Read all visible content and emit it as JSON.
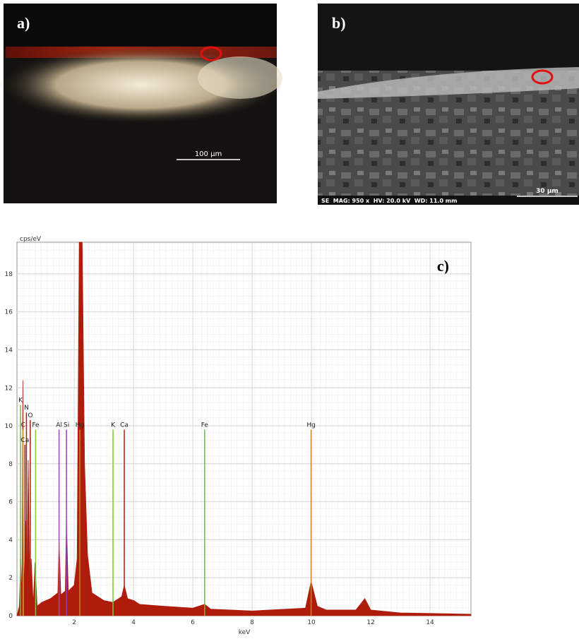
{
  "panels": {
    "a": {
      "label": "a)",
      "scale_bar": "100 µm"
    },
    "b": {
      "label": "b)",
      "scale_bar": "30 µm",
      "info": "SE  MAG: 950 x  HV: 20.0 kV  WD: 11.0 mm"
    }
  },
  "chart_data": {
    "type": "spectrum",
    "panel_label": "c)",
    "ylabel": "cps/eV",
    "xlabel": "keV",
    "xlim": [
      0.07,
      15.38
    ],
    "ylim": [
      0,
      19.67
    ],
    "xticks": [
      2,
      4,
      6,
      8,
      10,
      12,
      14
    ],
    "yticks": [
      0,
      2,
      4,
      6,
      8,
      10,
      12,
      14,
      16,
      18
    ],
    "grid": true,
    "spectrum": {
      "color": "#b01c0c",
      "x": [
        0.07,
        0.15,
        0.2,
        0.24,
        0.27,
        0.3,
        0.36,
        0.4,
        0.45,
        0.5,
        0.55,
        0.62,
        0.68,
        0.75,
        0.9,
        1.2,
        1.45,
        1.49,
        1.55,
        1.7,
        1.74,
        1.8,
        2.0,
        2.1,
        2.17,
        2.27,
        2.35,
        2.45,
        2.6,
        3.0,
        3.3,
        3.6,
        3.69,
        3.8,
        4.01,
        4.2,
        5.0,
        6.0,
        6.4,
        6.6,
        8,
        8.6,
        9.8,
        9.99,
        10.2,
        10.5,
        11.5,
        11.8,
        12.0,
        13,
        14,
        15.38
      ],
      "values": [
        0,
        0.5,
        3,
        0.8,
        12.4,
        1,
        5,
        0.8,
        8.2,
        1.5,
        3,
        0.6,
        2.8,
        0.5,
        0.7,
        0.9,
        1.2,
        4.0,
        1.1,
        1.3,
        5.1,
        1.3,
        1.6,
        3,
        19.67,
        19.67,
        8,
        3.2,
        1.2,
        0.8,
        0.7,
        1.0,
        1.6,
        0.9,
        0.8,
        0.6,
        0.5,
        0.4,
        0.6,
        0.35,
        0.25,
        0.3,
        0.4,
        1.8,
        0.5,
        0.3,
        0.3,
        0.9,
        0.3,
        0.15,
        0.12,
        0.08
      ]
    },
    "markers": [
      {
        "label": "K",
        "energy": 0.19,
        "height": 11.1,
        "color": "#7ab83c"
      },
      {
        "label": "N",
        "energy": 0.39,
        "height": 10.7,
        "color": "#b01c0c"
      },
      {
        "label": "O",
        "energy": 0.52,
        "height": 10.3,
        "color": "#b01c0c"
      },
      {
        "label": "C",
        "energy": 0.28,
        "height": 9.8,
        "color": "#d8a040"
      },
      {
        "label": "Fe",
        "energy": 0.7,
        "height": 9.8,
        "color": "#7ac83c"
      },
      {
        "label": "Ca",
        "energy": 0.34,
        "height": 9.0,
        "color": "#b01c0c"
      },
      {
        "label": "Al",
        "energy": 1.49,
        "height": 9.8,
        "color": "#b040c0"
      },
      {
        "label": "Si",
        "energy": 1.74,
        "height": 9.8,
        "color": "#9040c0"
      },
      {
        "label": "Hg",
        "energy": 2.19,
        "height": 9.8,
        "color": "#d08030"
      },
      {
        "label": "K",
        "energy": 3.31,
        "height": 9.8,
        "color": "#7ac83c"
      },
      {
        "label": "Ca",
        "energy": 3.69,
        "height": 9.8,
        "color": "#b01c0c"
      },
      {
        "label": "Fe",
        "energy": 6.4,
        "height": 9.8,
        "color": "#5cc040"
      },
      {
        "label": "Hg",
        "energy": 9.99,
        "height": 9.8,
        "color": "#d08030"
      }
    ]
  }
}
